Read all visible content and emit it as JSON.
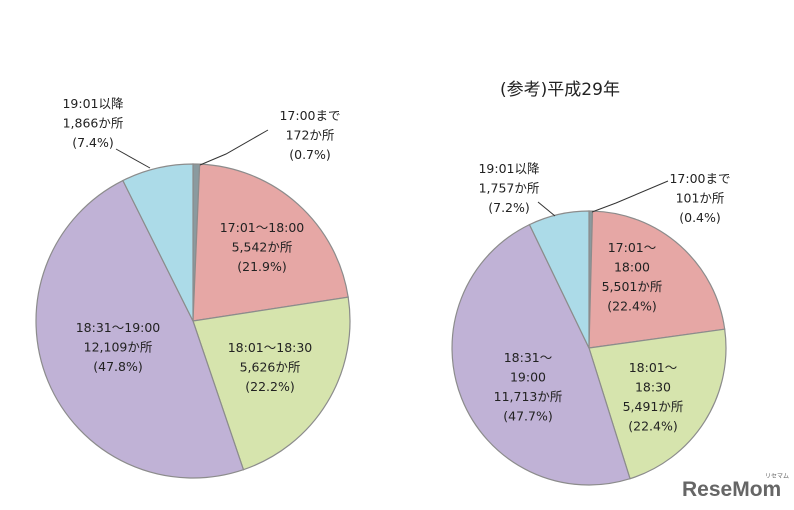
{
  "logo": {
    "text": "ReseMom",
    "small": "リセマム"
  },
  "chart_data": [
    {
      "type": "pie",
      "title": "",
      "slices": [
        {
          "name": "17:00まで",
          "value": 172,
          "count": "172か所",
          "pct": "(0.7%)",
          "color": "#8a9a9f"
        },
        {
          "name": "17:01〜18:00",
          "value": 5542,
          "count": "5,542か所",
          "pct": "(21.9%)",
          "color": "#e6a7a5"
        },
        {
          "name": "18:01〜18:30",
          "value": 5626,
          "count": "5,626か所",
          "pct": "(22.2%)",
          "color": "#d6e4ad"
        },
        {
          "name": "18:31〜19:00",
          "value": 12109,
          "count": "12,109か所",
          "pct": "(47.8%)",
          "color": "#c0b2d6"
        },
        {
          "name": "19:01以降",
          "value": 1866,
          "count": "1,866か所",
          "pct": "(7.4%)",
          "color": "#acdbe8"
        }
      ]
    },
    {
      "type": "pie",
      "title": "(参考)平成29年",
      "slices": [
        {
          "name": "17:00まで",
          "value": 101,
          "count": "101か所",
          "pct": "(0.4%)",
          "color": "#8a9a9f"
        },
        {
          "name": "17:01〜18:00",
          "value": 5501,
          "count": "5,501か所",
          "pct": "(22.4%)",
          "color": "#e6a7a5"
        },
        {
          "name": "18:01〜18:30",
          "value": 5491,
          "count": "5,491か所",
          "pct": "(22.4%)",
          "color": "#d6e4ad"
        },
        {
          "name": "18:31〜19:00",
          "value": 11713,
          "count": "11,713か所",
          "pct": "(47.7%)",
          "color": "#c0b2d6"
        },
        {
          "name": "19:01以降",
          "value": 1757,
          "count": "1,757か所",
          "pct": "(7.2%)",
          "color": "#acdbe8"
        }
      ]
    }
  ]
}
